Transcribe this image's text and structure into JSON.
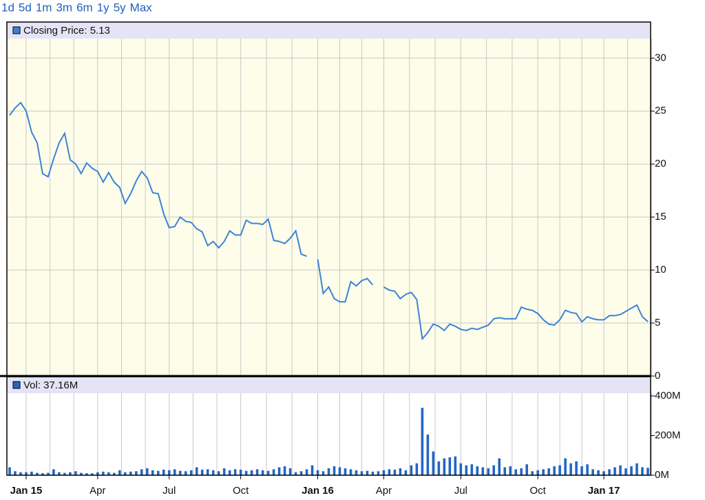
{
  "range_selector": [
    "1d",
    "5d",
    "1m",
    "3m",
    "6m",
    "1y",
    "5y",
    "Max"
  ],
  "chart_data": [
    {
      "type": "line",
      "legend": "Closing Price: 5.13",
      "color": "#3b82d9",
      "background": "#fdfde9",
      "grid": true,
      "ylim": [
        0,
        33.4
      ],
      "yticks": [
        0,
        5,
        10,
        15,
        20,
        25,
        30
      ],
      "values": [
        24.6,
        25.3,
        25.8,
        25.0,
        23.0,
        22.0,
        19.1,
        18.8,
        20.5,
        22.0,
        22.9,
        20.4,
        20.0,
        19.1,
        20.1,
        19.6,
        19.3,
        18.3,
        19.2,
        18.3,
        17.8,
        16.3,
        17.2,
        18.4,
        19.3,
        18.7,
        17.3,
        17.2,
        15.3,
        14.0,
        14.1,
        15.0,
        14.6,
        14.5,
        13.9,
        13.6,
        12.3,
        12.7,
        12.1,
        12.7,
        13.7,
        13.3,
        13.3,
        14.7,
        14.4,
        14.4,
        14.3,
        14.8,
        12.8,
        12.7,
        12.5,
        13.0,
        13.7,
        11.5,
        11.3,
        null,
        11.0,
        7.8,
        8.4,
        7.3,
        7.0,
        7.0,
        8.9,
        8.5,
        9.0,
        9.2,
        8.6,
        null,
        8.4,
        8.1,
        8.0,
        7.3,
        7.7,
        7.9,
        7.2,
        3.5,
        4.1,
        4.9,
        4.7,
        4.3,
        4.9,
        4.7,
        4.4,
        4.3,
        4.5,
        4.4,
        4.6,
        4.8,
        5.4,
        5.5,
        5.4,
        5.4,
        5.4,
        6.5,
        6.3,
        6.2,
        5.9,
        5.3,
        4.9,
        4.8,
        5.3,
        6.2,
        6.0,
        5.9,
        5.1,
        5.6,
        5.4,
        5.3,
        5.3,
        5.7,
        5.7,
        5.8,
        6.1,
        6.4,
        6.7,
        5.6,
        5.13
      ]
    },
    {
      "type": "bar",
      "legend": "Vol: 37.16M",
      "color": "#2266c4",
      "background": "#ffffff",
      "grid": false,
      "ylim": [
        0,
        497
      ],
      "yticks": [
        {
          "value": 0,
          "label": "0M"
        },
        {
          "value": 200,
          "label": "200M"
        },
        {
          "value": 400,
          "label": "400M"
        }
      ],
      "categories": [
        null,
        null,
        null,
        "Jan 15",
        null,
        null,
        null,
        null,
        null,
        null,
        null,
        null,
        null,
        null,
        null,
        null,
        "Apr",
        null,
        null,
        null,
        null,
        null,
        null,
        null,
        null,
        null,
        null,
        null,
        null,
        "Jul",
        null,
        null,
        null,
        null,
        null,
        null,
        null,
        null,
        null,
        null,
        null,
        null,
        "Oct",
        null,
        null,
        null,
        null,
        null,
        null,
        null,
        null,
        null,
        null,
        null,
        null,
        null,
        "Jan 16",
        null,
        null,
        null,
        null,
        null,
        null,
        null,
        null,
        null,
        null,
        null,
        "Apr",
        null,
        null,
        null,
        null,
        null,
        null,
        null,
        null,
        null,
        null,
        null,
        null,
        null,
        "Jul",
        null,
        null,
        null,
        null,
        null,
        null,
        null,
        null,
        null,
        null,
        null,
        null,
        null,
        "Oct",
        null,
        null,
        null,
        null,
        null,
        null,
        null,
        null,
        null,
        null,
        null,
        "Jan 17",
        null,
        null,
        null,
        null,
        null,
        null,
        null,
        null
      ],
      "values": [
        40,
        20,
        15,
        15,
        18,
        12,
        10,
        12,
        30,
        15,
        12,
        15,
        20,
        12,
        10,
        10,
        15,
        18,
        15,
        12,
        25,
        15,
        18,
        20,
        30,
        35,
        25,
        22,
        28,
        25,
        30,
        22,
        20,
        25,
        40,
        28,
        30,
        25,
        20,
        35,
        25,
        30,
        28,
        22,
        25,
        30,
        25,
        22,
        30,
        40,
        45,
        35,
        15,
        20,
        30,
        50,
        25,
        20,
        35,
        45,
        40,
        35,
        30,
        25,
        20,
        22,
        18,
        20,
        25,
        30,
        28,
        35,
        25,
        50,
        60,
        340,
        205,
        120,
        70,
        85,
        90,
        95,
        60,
        50,
        55,
        45,
        40,
        35,
        50,
        85,
        40,
        45,
        30,
        35,
        55,
        20,
        25,
        30,
        35,
        45,
        50,
        85,
        60,
        70,
        45,
        55,
        30,
        25,
        20,
        30,
        40,
        50,
        35,
        45,
        60,
        40,
        37.16
      ]
    }
  ]
}
